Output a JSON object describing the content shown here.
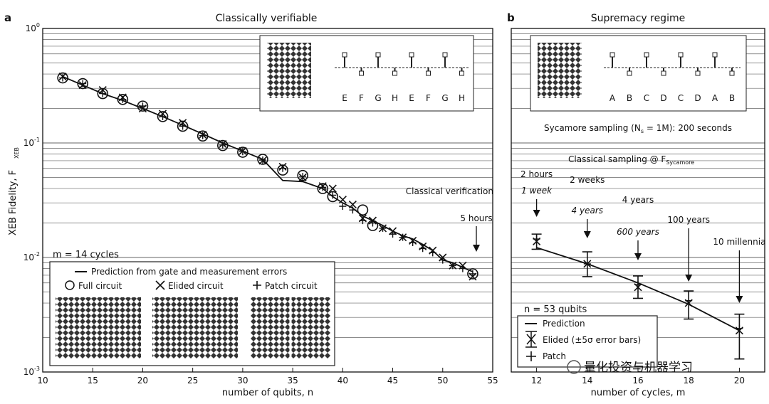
{
  "panel_a": {
    "letter": "a",
    "title": "Classically verifiable",
    "xlabel": "number of qubits, n",
    "ylabel": "XEB Fidelity, F",
    "ylabel_sub": "XEB",
    "cycles_label": "m = 14 cycles",
    "annotations": {
      "classical_verification": "Classical verification",
      "five_hours": "5 hours"
    },
    "legend": {
      "prediction": "Prediction from gate and measurement errors",
      "full": "Full circuit",
      "elided": "Elided circuit",
      "patch": "Patch circuit"
    },
    "inset_letters": [
      "E",
      "F",
      "G",
      "H",
      "E",
      "F",
      "G",
      "H"
    ]
  },
  "panel_b": {
    "letter": "b",
    "title": "Supremacy regime",
    "xlabel": "number of cycles, m",
    "sycamore_line": "Sycamore sampling (N",
    "sycamore_sub": "s",
    "sycamore_rest": " = 1M): 200 seconds",
    "classical_sampling": "Classical sampling @ F",
    "classical_sampling_sub": "Sycamore",
    "qubits_label": "n = 53 qubits",
    "legend": {
      "prediction": "Prediction",
      "elided": "Elided (±5σ error bars)",
      "patch": "Patch"
    },
    "inset_letters": [
      "A",
      "B",
      "C",
      "D",
      "C",
      "D",
      "A",
      "B"
    ],
    "time_labels": [
      {
        "upper": "2 hours",
        "lower": "1 week"
      },
      {
        "upper": "2 weeks",
        "lower": "4 years"
      },
      {
        "upper": "4 years",
        "lower": "600 years"
      },
      {
        "upper": "100 years",
        "lower": ""
      },
      {
        "upper": "10 millennia",
        "lower": ""
      }
    ]
  },
  "watermark": "量化投资与机器学习",
  "chart_data": [
    {
      "type": "scatter",
      "title": "Classically verifiable",
      "xlabel": "number of qubits, n",
      "ylabel": "XEB Fidelity",
      "xlim": [
        10,
        55
      ],
      "ylim": [
        0.001,
        1
      ],
      "yscale": "log",
      "xticks": [
        10,
        15,
        20,
        25,
        30,
        35,
        40,
        45,
        50,
        55
      ],
      "yticks": [
        "10^-3",
        "10^-2",
        "10^-1",
        "10^0"
      ],
      "grid": "horizontal",
      "legend_position": "bottom-left",
      "series": [
        {
          "name": "Prediction from gate and measurement errors",
          "kind": "line",
          "x": [
            12,
            14,
            16,
            18,
            20,
            22,
            24,
            26,
            28,
            30,
            32,
            34,
            36,
            38,
            39,
            40,
            41,
            42,
            43,
            44,
            45,
            46,
            47,
            48,
            49,
            50,
            51,
            52,
            53
          ],
          "y": [
            0.38,
            0.32,
            0.27,
            0.235,
            0.2,
            0.17,
            0.143,
            0.12,
            0.1,
            0.085,
            0.072,
            0.047,
            0.046,
            0.04,
            0.034,
            0.03,
            0.027,
            0.023,
            0.021,
            0.019,
            0.017,
            0.0155,
            0.0145,
            0.013,
            0.0115,
            0.0095,
            0.009,
            0.0082,
            0.0075
          ]
        },
        {
          "name": "Full circuit",
          "kind": "circle",
          "x": [
            12,
            14,
            16,
            18,
            20,
            22,
            24,
            26,
            28,
            30,
            32,
            34,
            36,
            38,
            39,
            42,
            43,
            53
          ],
          "y": [
            0.37,
            0.33,
            0.27,
            0.24,
            0.21,
            0.17,
            0.14,
            0.115,
            0.095,
            0.083,
            0.072,
            0.058,
            0.052,
            0.04,
            0.034,
            0.026,
            0.019,
            0.0072
          ]
        },
        {
          "name": "Elided circuit",
          "kind": "x",
          "x": [
            12,
            14,
            16,
            18,
            20,
            22,
            24,
            26,
            28,
            30,
            32,
            34,
            36,
            38,
            39,
            40,
            41,
            42,
            43,
            44,
            45,
            46,
            47,
            48,
            49,
            50,
            51,
            52,
            53
          ],
          "y": [
            0.38,
            0.32,
            0.29,
            0.25,
            0.2,
            0.18,
            0.15,
            0.118,
            0.098,
            0.085,
            0.07,
            0.062,
            0.05,
            0.042,
            0.04,
            0.032,
            0.029,
            0.022,
            0.021,
            0.018,
            0.017,
            0.015,
            0.014,
            0.0125,
            0.0115,
            0.01,
            0.0085,
            0.0085,
            0.0068
          ]
        },
        {
          "name": "Patch circuit",
          "kind": "plus",
          "x": [
            12,
            14,
            16,
            18,
            20,
            22,
            24,
            26,
            28,
            30,
            32,
            34,
            36,
            38,
            39,
            40,
            41,
            42,
            43,
            44,
            45,
            46,
            47,
            48,
            49,
            50,
            51,
            52,
            53
          ],
          "y": [
            0.37,
            0.33,
            0.27,
            0.24,
            0.21,
            0.17,
            0.14,
            0.116,
            0.096,
            0.084,
            0.071,
            0.06,
            0.051,
            0.041,
            0.035,
            0.028,
            0.026,
            0.021,
            0.02,
            0.018,
            0.016,
            0.015,
            0.0135,
            0.012,
            0.011,
            0.0095,
            0.0085,
            0.008,
            0.0072
          ]
        }
      ]
    },
    {
      "type": "scatter",
      "title": "Supremacy regime",
      "xlabel": "number of cycles, m",
      "ylabel": "XEB Fidelity",
      "xlim": [
        11,
        21
      ],
      "ylim": [
        0.001,
        1
      ],
      "yscale": "log",
      "xticks": [
        12,
        14,
        16,
        18,
        20
      ],
      "grid": "horizontal",
      "legend_position": "bottom-left",
      "series": [
        {
          "name": "Prediction",
          "kind": "line",
          "x": [
            12,
            14,
            16,
            18,
            20
          ],
          "y": [
            0.0122,
            0.0088,
            0.006,
            0.0039,
            0.0023
          ]
        },
        {
          "name": "Elided (±5σ error bars)",
          "kind": "x",
          "x": [
            12,
            14,
            16,
            18,
            20
          ],
          "y": [
            0.0138,
            0.0088,
            0.0055,
            0.004,
            0.0023
          ],
          "err_low": [
            0.0118,
            0.0068,
            0.0044,
            0.0029,
            0.0013
          ],
          "err_high": [
            0.016,
            0.0112,
            0.0069,
            0.0051,
            0.0032
          ]
        },
        {
          "name": "Patch",
          "kind": "plus",
          "x": [
            12,
            14,
            16,
            18,
            20
          ],
          "y": [
            0.0145,
            0.0088,
            0.0058,
            0.0042,
            0.0024
          ]
        }
      ]
    }
  ]
}
